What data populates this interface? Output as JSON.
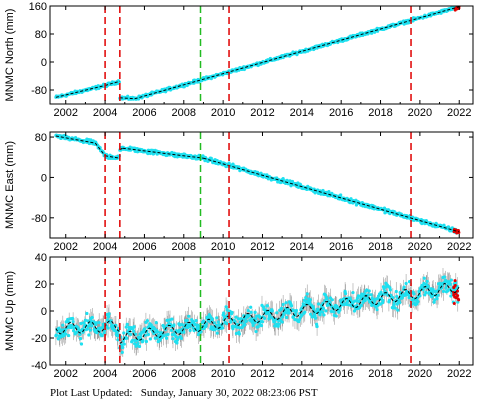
{
  "colors": {
    "data": "#1ee0f0",
    "errorbar": "#a0a0a0",
    "model": "#000000",
    "outlier": "#e00000",
    "equipment_change": "#e00000",
    "other_event": "#22bb22"
  },
  "footer": {
    "label": "Plot Last Updated:",
    "value": "Sunday, January 30, 2022 08:23:06 PST"
  },
  "chart_data": [
    {
      "type": "scatter",
      "ylabel": "MNMC North (mm)",
      "xlim": [
        2001.2,
        2022.7
      ],
      "ylim": [
        -120,
        160
      ],
      "xticks": [
        2002,
        2004,
        2006,
        2008,
        2010,
        2012,
        2014,
        2016,
        2018,
        2020,
        2022
      ],
      "yticks": [
        -80,
        0,
        80,
        160
      ],
      "grid": false,
      "segments": [
        {
          "x": [
            2001.5,
            2004.0
          ],
          "y": [
            -101,
            -67
          ]
        },
        {
          "x": [
            2004.0,
            2004.75
          ],
          "y": [
            -67,
            -55
          ]
        },
        {
          "x": [
            2004.75,
            2005.5
          ],
          "y": [
            -102,
            -105
          ]
        },
        {
          "x": [
            2005.5,
            2022.0
          ],
          "y": [
            -105,
            158
          ]
        }
      ],
      "vlines_red": [
        2004.0,
        2004.75,
        2010.3,
        2019.55
      ],
      "vlines_green": [
        2008.85
      ]
    },
    {
      "type": "scatter",
      "ylabel": "MNMC East (mm)",
      "xlim": [
        2001.2,
        2022.7
      ],
      "ylim": [
        -120,
        90
      ],
      "xticks": [
        2002,
        2004,
        2006,
        2008,
        2010,
        2012,
        2014,
        2016,
        2018,
        2020,
        2022
      ],
      "yticks": [
        -80,
        0,
        80
      ],
      "grid": false,
      "segments": [
        {
          "x": [
            2001.5,
            2003.5
          ],
          "y": [
            82,
            68
          ]
        },
        {
          "x": [
            2003.5,
            2004.0
          ],
          "y": [
            68,
            43
          ]
        },
        {
          "x": [
            2004.0,
            2004.75
          ],
          "y": [
            43,
            38
          ]
        },
        {
          "x": [
            2004.75,
            2004.9
          ],
          "y": [
            55,
            58
          ]
        },
        {
          "x": [
            2004.9,
            2009.0
          ],
          "y": [
            58,
            38
          ]
        },
        {
          "x": [
            2009.0,
            2022.0
          ],
          "y": [
            38,
            -108
          ]
        }
      ],
      "vlines_red": [
        2004.0,
        2004.75,
        2010.3,
        2019.55
      ],
      "vlines_green": [
        2008.85
      ]
    },
    {
      "type": "scatter",
      "ylabel": "MNMC Up (mm)",
      "xlim": [
        2001.2,
        2022.7
      ],
      "ylim": [
        -40,
        40
      ],
      "xticks": [
        2002,
        2004,
        2006,
        2008,
        2010,
        2012,
        2014,
        2016,
        2018,
        2020,
        2022
      ],
      "yticks": [
        -40,
        -20,
        0,
        20,
        40
      ],
      "grid": false,
      "segments": [
        {
          "x": [
            2001.5,
            2004.75
          ],
          "y": [
            -13,
            -11
          ]
        },
        {
          "x": [
            2004.75,
            2022.0
          ],
          "y": [
            -20,
            18
          ]
        }
      ],
      "seasonal_amplitude": 4,
      "vlines_red": [
        2004.0,
        2004.75,
        2010.3,
        2019.55
      ],
      "vlines_green": [
        2008.85
      ]
    }
  ]
}
